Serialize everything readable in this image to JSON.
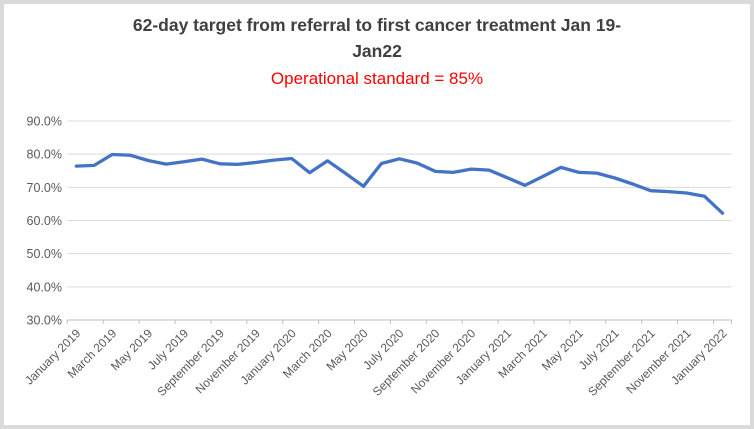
{
  "chart": {
    "title_line1": "62-day target from referral to first cancer treatment Jan 19-",
    "title_line2": "Jan22",
    "subtitle": "Operational standard = 85%",
    "title_color": "#404040",
    "subtitle_color": "#FF0000",
    "line_color": "#4472C4",
    "grid_color": "#D9D9D9",
    "axis_color": "#BFBFBF",
    "label_color": "#595959",
    "border_color": "#DADADA"
  },
  "chart_data": {
    "type": "line",
    "title": "62-day target from referral to first cancer treatment Jan 19-Jan22",
    "subtitle": "Operational standard = 85%",
    "x": [
      "January 2019",
      "February 2019",
      "March 2019",
      "April 2019",
      "May 2019",
      "June 2019",
      "July 2019",
      "August 2019",
      "September 2019",
      "October 2019",
      "November 2019",
      "December 2019",
      "January 2020",
      "February 2020",
      "March 2020",
      "April 2020",
      "May 2020",
      "June 2020",
      "July 2020",
      "August 2020",
      "September 2020",
      "October 2020",
      "November 2020",
      "December 2020",
      "January 2021",
      "February 2021",
      "March 2021",
      "April 2021",
      "May 2021",
      "June 2021",
      "July 2021",
      "August 2021",
      "September 2021",
      "October 2021",
      "November 2021",
      "December 2021",
      "January 2022"
    ],
    "values": [
      76.4,
      76.6,
      79.9,
      79.7,
      78.1,
      77.0,
      77.7,
      78.5,
      77.1,
      76.9,
      77.5,
      78.2,
      78.7,
      74.4,
      78.0,
      74.2,
      70.3,
      77.2,
      78.6,
      77.3,
      74.8,
      74.5,
      75.5,
      75.2,
      72.9,
      70.6,
      73.3,
      76.0,
      74.5,
      74.3,
      72.8,
      71.0,
      69.0,
      68.7,
      68.3,
      67.3,
      62.2
    ],
    "x_axis_tick_labels": [
      "January 2019",
      "March 2019",
      "May 2019",
      "July 2019",
      "September 2019",
      "November 2019",
      "January 2020",
      "March 2020",
      "May 2020",
      "July 2020",
      "September 2020",
      "November 2020",
      "January 2021",
      "March 2021",
      "May 2021",
      "July 2021",
      "September 2021",
      "November 2021",
      "January 2022"
    ],
    "y_axis_tick_labels": [
      "90.0%",
      "80.0%",
      "70.0%",
      "60.0%",
      "50.0%",
      "40.0%",
      "30.0%"
    ],
    "ylim": [
      30,
      90
    ],
    "ytick_step": 10,
    "xlabel": "",
    "ylabel": "",
    "grid": true,
    "legend": false
  }
}
